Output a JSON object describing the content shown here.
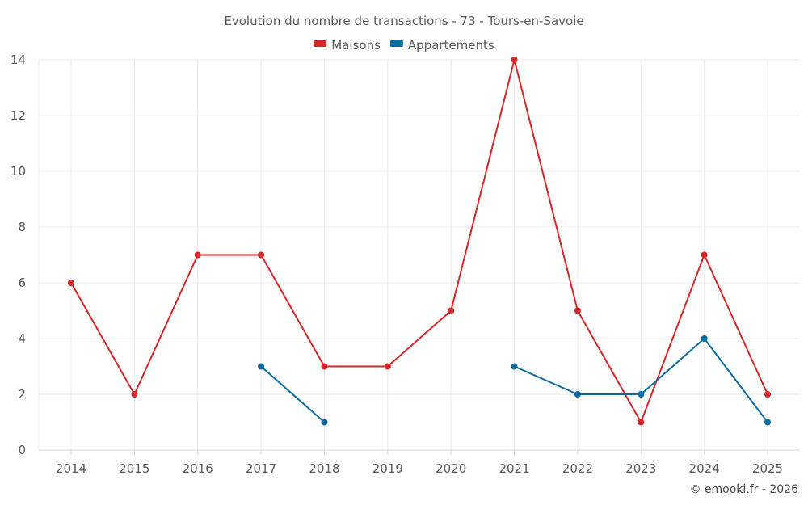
{
  "chart_data": {
    "type": "line",
    "title": "Evolution du nombre de transactions - 73 - Tours-en-Savoie",
    "xlabel": "",
    "ylabel": "",
    "categories": [
      "2014",
      "2015",
      "2016",
      "2017",
      "2018",
      "2019",
      "2020",
      "2021",
      "2022",
      "2023",
      "2024",
      "2025"
    ],
    "ylim": [
      0,
      14
    ],
    "yticks": [
      0,
      2,
      4,
      6,
      8,
      10,
      12,
      14
    ],
    "grid": true,
    "legend_position": "top-center",
    "series": [
      {
        "name": "Maisons",
        "color": "#d62728",
        "values": [
          6,
          2,
          7,
          7,
          3,
          3,
          5,
          14,
          5,
          1,
          7,
          2
        ]
      },
      {
        "name": "Appartements",
        "color": "#0b6aa2",
        "values": [
          null,
          null,
          null,
          3,
          1,
          null,
          null,
          3,
          2,
          2,
          4,
          1
        ]
      }
    ]
  },
  "credit": "© emooki.fr - 2026"
}
